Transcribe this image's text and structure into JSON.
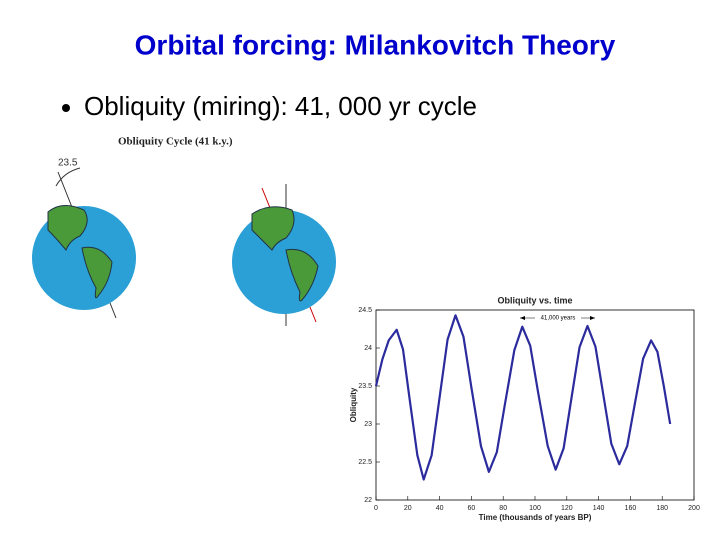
{
  "slide": {
    "title": "Orbital forcing: Milankovitch Theory",
    "bullet": "Obliquity (miring): 41, 000 yr cycle",
    "figure_title": "Obliquity Cycle (41 k.y.)",
    "angle_label": "23.5"
  },
  "chart_data": {
    "type": "line",
    "title": "Obliquity vs. time",
    "x_label": "Time (thousands of years BP)",
    "y_label": "Obliquity",
    "annotation": "41,000 years",
    "x": [
      0,
      4,
      8,
      13,
      17,
      21,
      26,
      30,
      35,
      40,
      45,
      50,
      55,
      60,
      66,
      71,
      76,
      81,
      87,
      92,
      97,
      102,
      108,
      113,
      118,
      123,
      128,
      133,
      138,
      143,
      148,
      153,
      158,
      163,
      168,
      173,
      177,
      181,
      185
    ],
    "values": [
      23.5,
      23.85,
      24.1,
      24.24,
      23.98,
      23.35,
      22.59,
      22.27,
      22.59,
      23.35,
      24.11,
      24.43,
      24.15,
      23.48,
      22.71,
      22.37,
      22.63,
      23.25,
      23.97,
      24.28,
      24.03,
      23.41,
      22.71,
      22.4,
      22.68,
      23.35,
      24.01,
      24.29,
      24.02,
      23.38,
      22.74,
      22.47,
      22.71,
      23.29,
      23.86,
      24.1,
      23.95,
      23.5,
      23
    ],
    "color": "#2b2b9e",
    "xlim": [
      0,
      200
    ],
    "xticks": [
      0,
      20,
      40,
      60,
      80,
      100,
      120,
      140,
      160,
      180,
      200
    ],
    "ylim": [
      22,
      24.5
    ],
    "yticks": [
      22,
      22.5,
      23,
      23.5,
      24,
      24.5
    ]
  }
}
